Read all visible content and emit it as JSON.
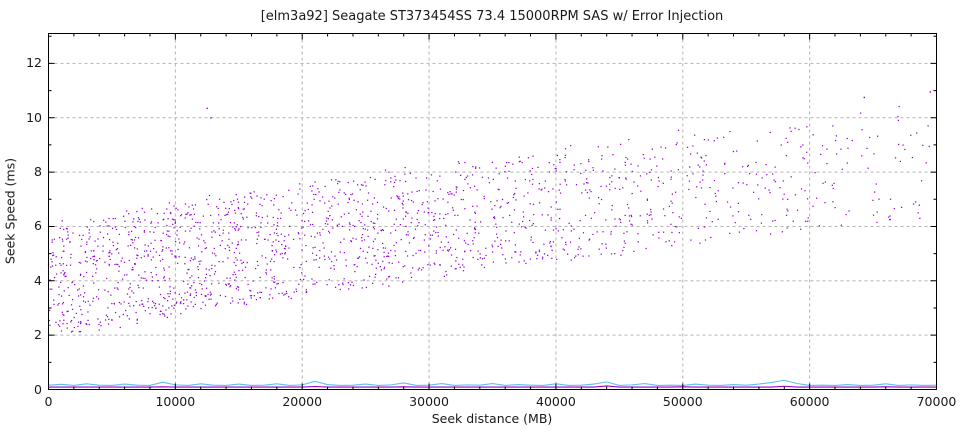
{
  "title": "[elm3a92] Seagate ST373454SS 73.4 15000RPM SAS w/ Error Injection",
  "axes": {
    "x_label": "Seek distance (MB)",
    "y_label": "Seek Speed (ms)",
    "x_ticks": [
      0,
      10000,
      20000,
      30000,
      40000,
      50000,
      60000,
      70000
    ],
    "y_ticks": [
      0,
      2,
      4,
      6,
      8,
      10,
      12
    ]
  },
  "chart_data": {
    "type": "scatter",
    "title": "[elm3a92] Seagate ST373454SS 73.4 15000RPM SAS w/ Error Injection",
    "xlabel": "Seek distance (MB)",
    "ylabel": "Seek Speed (ms)",
    "xlim": [
      0,
      70000
    ],
    "ylim": [
      0,
      13.1
    ],
    "x_major_tick_step": 10000,
    "x_minor_tick_step": 2000,
    "y_major_tick_step": 2,
    "y_minor_tick_step": 1,
    "grid": "dashed at major ticks",
    "legend": "none",
    "colors": {
      "background": "#ffffff",
      "border": "#000000",
      "grid": "#b3b3b3",
      "scatter": "#9400d3",
      "line_cyan": "#58c2ef",
      "line_purple": "#9a00cd",
      "text": "#1a1a1a"
    },
    "series": [
      {
        "name": "seek-speed-samples",
        "kind": "scatter-distribution",
        "color": "#9400d3",
        "seed": 1337,
        "n": 1850,
        "x_max": 70000,
        "x_triangular_frac": 0.8,
        "lower_y_at_0": 1.85,
        "lower_y_at_max": 6.45,
        "lower_curve_exp": 0.85,
        "band_height": 4.1,
        "band_exponent": 1.05,
        "jitter": 0.2,
        "outlier_prob": 0.004,
        "outlier_extra_max": 1.1
      },
      {
        "name": "high-outliers",
        "kind": "points",
        "color": "#9400d3",
        "points": [
          [
            12500,
            10.35
          ],
          [
            12800,
            10.0
          ],
          [
            64300,
            10.75
          ],
          [
            69500,
            10.95
          ]
        ]
      },
      {
        "name": "line-cyan-seek-floor",
        "kind": "line",
        "color": "#58c2ef",
        "x_start": 0,
        "x_step": 1000,
        "y": [
          0.16,
          0.19,
          0.15,
          0.21,
          0.16,
          0.15,
          0.2,
          0.16,
          0.15,
          0.27,
          0.17,
          0.15,
          0.21,
          0.16,
          0.15,
          0.2,
          0.15,
          0.16,
          0.21,
          0.15,
          0.17,
          0.3,
          0.18,
          0.15,
          0.16,
          0.2,
          0.15,
          0.17,
          0.24,
          0.15,
          0.16,
          0.22,
          0.15,
          0.17,
          0.16,
          0.22,
          0.15,
          0.18,
          0.16,
          0.15,
          0.21,
          0.15,
          0.16,
          0.2,
          0.28,
          0.15,
          0.17,
          0.22,
          0.15,
          0.16,
          0.15,
          0.2,
          0.16,
          0.15,
          0.18,
          0.16,
          0.2,
          0.26,
          0.34,
          0.22,
          0.15,
          0.16,
          0.15,
          0.18,
          0.15,
          0.16,
          0.21,
          0.15,
          0.17,
          0.15,
          0.16
        ]
      },
      {
        "name": "line-purple-seek-floor",
        "kind": "line",
        "color": "#9a00cd",
        "x_start": 0,
        "x_step": 1000,
        "y": [
          0.09,
          0.09,
          0.09,
          0.09,
          0.09,
          0.09,
          0.09,
          0.09,
          0.09,
          0.1,
          0.09,
          0.09,
          0.09,
          0.09,
          0.09,
          0.09,
          0.09,
          0.09,
          0.09,
          0.09,
          0.09,
          0.11,
          0.09,
          0.09,
          0.09,
          0.09,
          0.09,
          0.09,
          0.1,
          0.09,
          0.09,
          0.09,
          0.09,
          0.09,
          0.09,
          0.09,
          0.09,
          0.09,
          0.09,
          0.09,
          0.09,
          0.09,
          0.09,
          0.09,
          0.13,
          0.09,
          0.09,
          0.09,
          0.09,
          0.09,
          0.1,
          0.09,
          0.09,
          0.09,
          0.09,
          0.09,
          0.09,
          0.09,
          0.12,
          0.09,
          0.09,
          0.09,
          0.09,
          0.09,
          0.09,
          0.09,
          0.1,
          0.09,
          0.09,
          0.09,
          0.09
        ]
      }
    ]
  }
}
